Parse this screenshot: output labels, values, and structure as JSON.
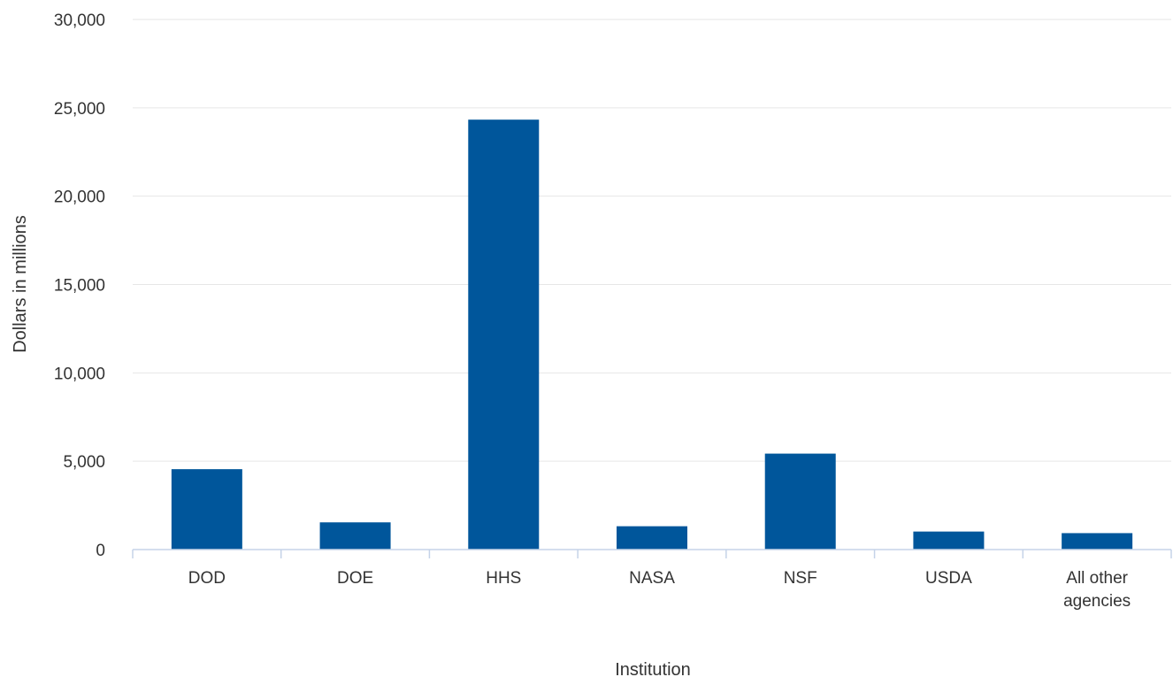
{
  "chart_data": {
    "type": "bar",
    "title": "",
    "xlabel": "Institution",
    "ylabel": "Dollars in millions",
    "categories": [
      [
        "DOD"
      ],
      [
        "DOE"
      ],
      [
        "HHS"
      ],
      [
        "NASA"
      ],
      [
        "NSF"
      ],
      [
        "USDA"
      ],
      [
        "All other",
        "agencies"
      ]
    ],
    "values": [
      4550,
      1540,
      24330,
      1320,
      5430,
      1020,
      930
    ],
    "ylim": [
      0,
      30000
    ],
    "yticks": [
      0,
      5000,
      10000,
      15000,
      20000,
      25000,
      30000
    ],
    "ytick_labels": [
      "0",
      "5,000",
      "10,000",
      "15,000",
      "20,000",
      "25,000",
      "30,000"
    ],
    "grid": true,
    "legend": "none",
    "colors": {
      "bar": "#00569b",
      "grid": "#e6e6e6",
      "axis": "#c5d3e8",
      "text": "#333333"
    }
  }
}
